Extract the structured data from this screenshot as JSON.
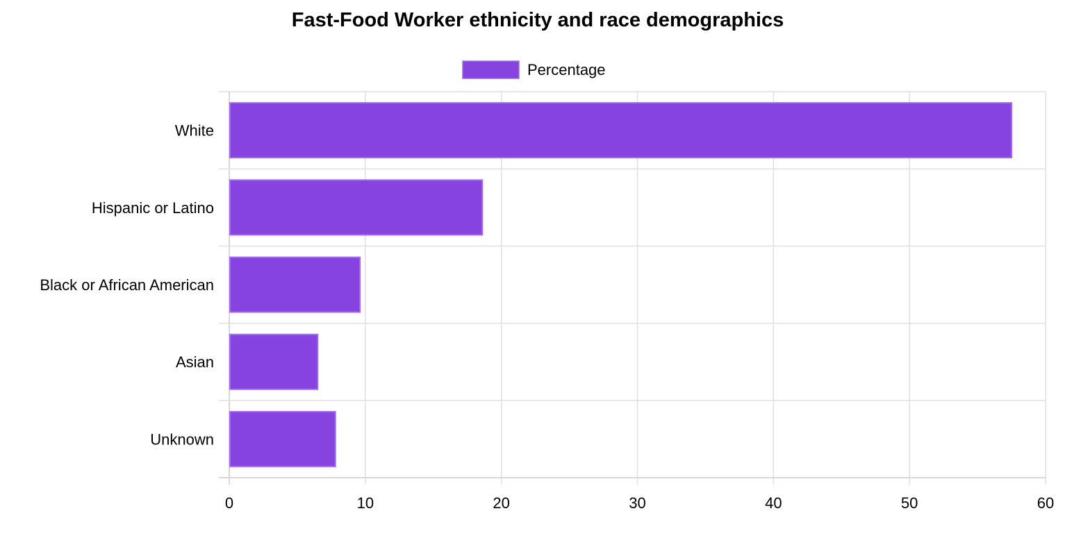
{
  "chart_data": {
    "type": "bar",
    "orientation": "horizontal",
    "title": "Fast-Food Worker ethnicity and race demographics",
    "categories": [
      "White",
      "Hispanic or Latino",
      "Black or African American",
      "Asian",
      "Unknown"
    ],
    "series": [
      {
        "name": "Percentage",
        "values": [
          57.5,
          18.6,
          9.6,
          6.5,
          7.8
        ],
        "color": "#8743df",
        "border_color": "#a06bf0"
      }
    ],
    "xlim": [
      0,
      60
    ],
    "xticks": [
      0,
      10,
      20,
      30,
      40,
      50,
      60
    ],
    "grid": true,
    "legend_position": "top-center"
  }
}
